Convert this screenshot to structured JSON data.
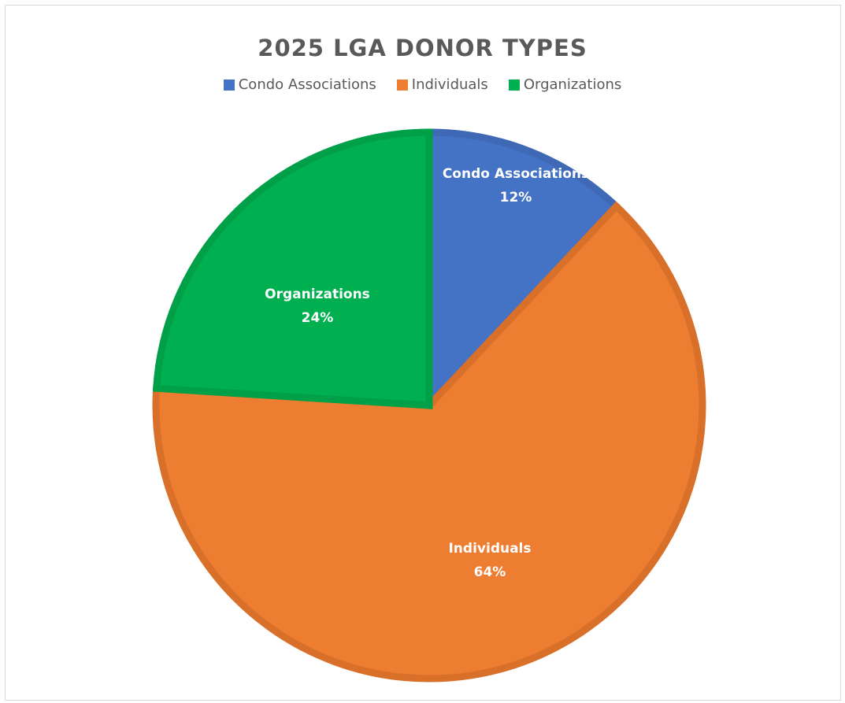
{
  "chart_data": {
    "type": "pie",
    "title": "2025 LGA DONOR TYPES",
    "categories": [
      "Condo Associations",
      "Individuals",
      "Organizations"
    ],
    "values": [
      12,
      64,
      24
    ],
    "value_labels": [
      "12%",
      "64%",
      "24%"
    ],
    "colors": [
      "#4472C4",
      "#ED7D31",
      "#00B050"
    ],
    "edge_colors": [
      "#3F68B5",
      "#D9702A",
      "#00A048"
    ],
    "legend_position": "top",
    "start_angle_deg": 0,
    "direction": "clockwise"
  }
}
